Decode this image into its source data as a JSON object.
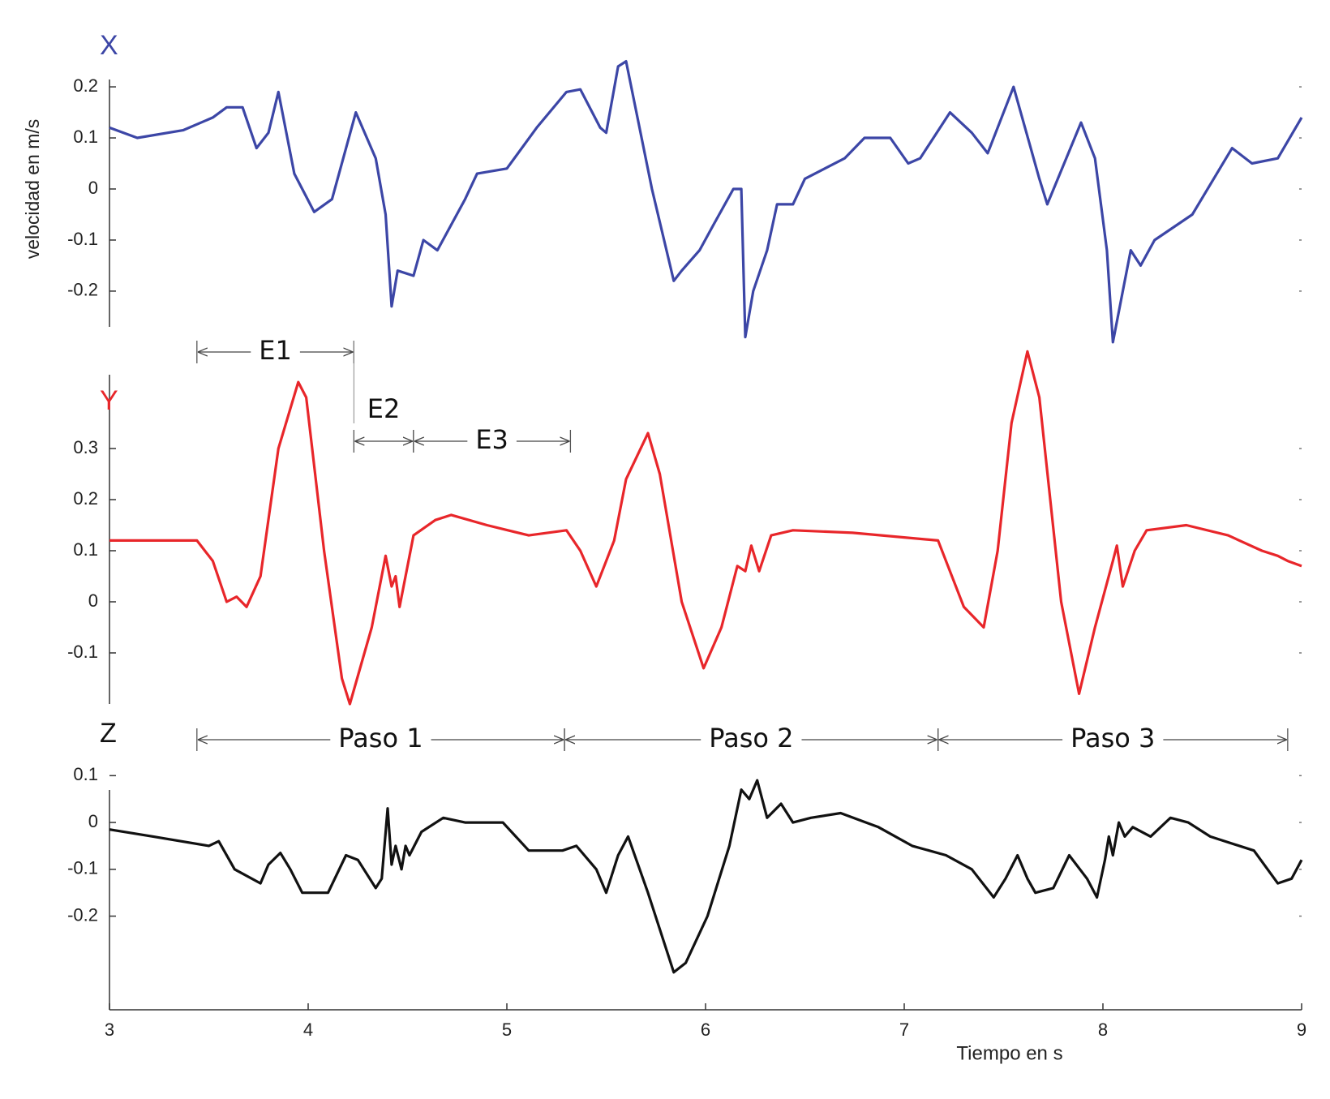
{
  "chart_data": [
    {
      "type": "line",
      "title": "X",
      "ylabel": "velocidad en m/s",
      "color": "#3c46a6",
      "xlim": [
        3,
        9
      ],
      "ylim": [
        -0.27,
        0.27
      ],
      "yticks": [
        -0.2,
        -0.1,
        0,
        0.1,
        0.2
      ],
      "x": [
        3.0,
        3.14,
        3.37,
        3.52,
        3.59,
        3.67,
        3.74,
        3.8,
        3.85,
        3.93,
        4.03,
        4.12,
        4.24,
        4.34,
        4.39,
        4.42,
        4.45,
        4.53,
        4.58,
        4.65,
        4.79,
        4.85,
        5.0,
        5.15,
        5.3,
        5.37,
        5.47,
        5.5,
        5.56,
        5.6,
        5.73,
        5.84,
        5.88,
        5.97,
        6.04,
        6.14,
        6.18,
        6.2,
        6.24,
        6.31,
        6.36,
        6.44,
        6.5,
        6.7,
        6.8,
        6.93,
        7.02,
        7.08,
        7.23,
        7.34,
        7.42,
        7.55,
        7.68,
        7.72,
        7.89,
        7.96,
        8.02,
        8.05,
        8.1,
        8.14,
        8.19,
        8.26,
        8.45,
        8.65,
        8.75,
        8.88,
        9.0
      ],
      "values": [
        0.12,
        0.1,
        0.115,
        0.14,
        0.16,
        0.16,
        0.08,
        0.11,
        0.19,
        0.03,
        -0.045,
        -0.02,
        0.15,
        0.06,
        -0.05,
        -0.23,
        -0.16,
        -0.17,
        -0.1,
        -0.12,
        -0.02,
        0.03,
        0.04,
        0.12,
        0.19,
        0.195,
        0.12,
        0.11,
        0.24,
        0.25,
        0,
        -0.18,
        -0.16,
        -0.12,
        -0.07,
        0,
        0.0,
        -0.29,
        -0.2,
        -0.12,
        -0.03,
        -0.03,
        0.02,
        0.06,
        0.1,
        0.1,
        0.05,
        0.06,
        0.15,
        0.11,
        0.07,
        0.2,
        0.02,
        -0.03,
        0.13,
        0.06,
        -0.12,
        -0.3,
        -0.2,
        -0.12,
        -0.15,
        -0.1,
        -0.05,
        0.08,
        0.05,
        0.06,
        0.14
      ]
    },
    {
      "type": "line",
      "title": "Y",
      "color": "#e8262a",
      "xlim": [
        3,
        9
      ],
      "ylim": [
        -0.2,
        0.5
      ],
      "yticks": [
        -0.1,
        0,
        0.1,
        0.2,
        0.3
      ],
      "annotations": [
        {
          "text": "E1",
          "x": [
            3.44,
            4.23
          ]
        },
        {
          "text": "E2",
          "x": [
            4.23,
            4.53
          ]
        },
        {
          "text": "E3",
          "x": [
            4.53,
            5.32
          ]
        }
      ],
      "x": [
        3.0,
        3.44,
        3.52,
        3.59,
        3.64,
        3.69,
        3.76,
        3.85,
        3.95,
        3.99,
        4.08,
        4.17,
        4.21,
        4.32,
        4.39,
        4.42,
        4.44,
        4.46,
        4.53,
        4.64,
        4.72,
        4.9,
        5.11,
        5.3,
        5.37,
        5.45,
        5.54,
        5.6,
        5.71,
        5.77,
        5.88,
        5.99,
        6.08,
        6.16,
        6.2,
        6.23,
        6.27,
        6.33,
        6.44,
        6.74,
        7.17,
        7.3,
        7.4,
        7.47,
        7.54,
        7.62,
        7.68,
        7.79,
        7.88,
        7.96,
        8.05,
        8.07,
        8.1,
        8.16,
        8.22,
        8.42,
        8.63,
        8.8,
        8.88,
        8.93,
        9.0
      ],
      "values": [
        0.12,
        0.12,
        0.08,
        0.0,
        0.01,
        -0.01,
        0.05,
        0.3,
        0.43,
        0.4,
        0.1,
        -0.15,
        -0.2,
        -0.05,
        0.09,
        0.03,
        0.05,
        -0.01,
        0.13,
        0.16,
        0.17,
        0.15,
        0.13,
        0.14,
        0.1,
        0.03,
        0.12,
        0.24,
        0.33,
        0.25,
        0.0,
        -0.13,
        -0.05,
        0.07,
        0.06,
        0.11,
        0.06,
        0.13,
        0.14,
        0.135,
        0.12,
        -0.01,
        -0.05,
        0.1,
        0.35,
        0.49,
        0.4,
        0.0,
        -0.18,
        -0.05,
        0.08,
        0.11,
        0.03,
        0.1,
        0.14,
        0.15,
        0.13,
        0.1,
        0.09,
        0.08,
        0.07
      ]
    },
    {
      "type": "line",
      "title": "Z",
      "color": "#111111",
      "xlabel": "Tiempo en s",
      "xlim": [
        3,
        9
      ],
      "xticks": [
        3,
        4,
        5,
        6,
        7,
        8,
        9
      ],
      "ylim": [
        -0.4,
        0.13
      ],
      "yticks": [
        -0.2,
        -0.1,
        0,
        0.1
      ],
      "annotations": [
        {
          "text": "Paso 1",
          "x": [
            3.44,
            5.29
          ]
        },
        {
          "text": "Paso 2",
          "x": [
            5.29,
            7.17
          ]
        },
        {
          "text": "Paso 3",
          "x": [
            7.17,
            8.93
          ]
        }
      ],
      "x": [
        3.0,
        3.22,
        3.5,
        3.55,
        3.63,
        3.76,
        3.8,
        3.86,
        3.91,
        3.97,
        4.1,
        4.19,
        4.25,
        4.34,
        4.37,
        4.4,
        4.42,
        4.44,
        4.47,
        4.49,
        4.51,
        4.57,
        4.68,
        4.79,
        4.98,
        5.11,
        5.28,
        5.35,
        5.45,
        5.5,
        5.56,
        5.61,
        5.71,
        5.84,
        5.9,
        6.01,
        6.12,
        6.18,
        6.22,
        6.26,
        6.31,
        6.38,
        6.44,
        6.53,
        6.68,
        6.87,
        7.04,
        7.21,
        7.34,
        7.45,
        7.51,
        7.57,
        7.62,
        7.66,
        7.75,
        7.83,
        7.92,
        7.97,
        8.01,
        8.03,
        8.05,
        8.08,
        8.11,
        8.15,
        8.24,
        8.34,
        8.43,
        8.54,
        8.76,
        8.88,
        8.95,
        9.0
      ],
      "values": [
        -0.015,
        -0.03,
        -0.05,
        -0.04,
        -0.1,
        -0.13,
        -0.09,
        -0.065,
        -0.1,
        -0.15,
        -0.15,
        -0.07,
        -0.08,
        -0.14,
        -0.12,
        0.03,
        -0.09,
        -0.05,
        -0.1,
        -0.05,
        -0.07,
        -0.02,
        0.01,
        0.0,
        0.0,
        -0.06,
        -0.06,
        -0.05,
        -0.1,
        -0.15,
        -0.07,
        -0.03,
        -0.15,
        -0.32,
        -0.3,
        -0.2,
        -0.05,
        0.07,
        0.05,
        0.09,
        0.01,
        0.04,
        0.0,
        0.01,
        0.02,
        -0.01,
        -0.05,
        -0.07,
        -0.1,
        -0.16,
        -0.12,
        -0.07,
        -0.12,
        -0.15,
        -0.14,
        -0.07,
        -0.12,
        -0.16,
        -0.08,
        -0.03,
        -0.07,
        0.0,
        -0.03,
        -0.01,
        -0.03,
        0.01,
        0.0,
        -0.03,
        -0.06,
        -0.13,
        -0.12,
        -0.08
      ]
    }
  ]
}
